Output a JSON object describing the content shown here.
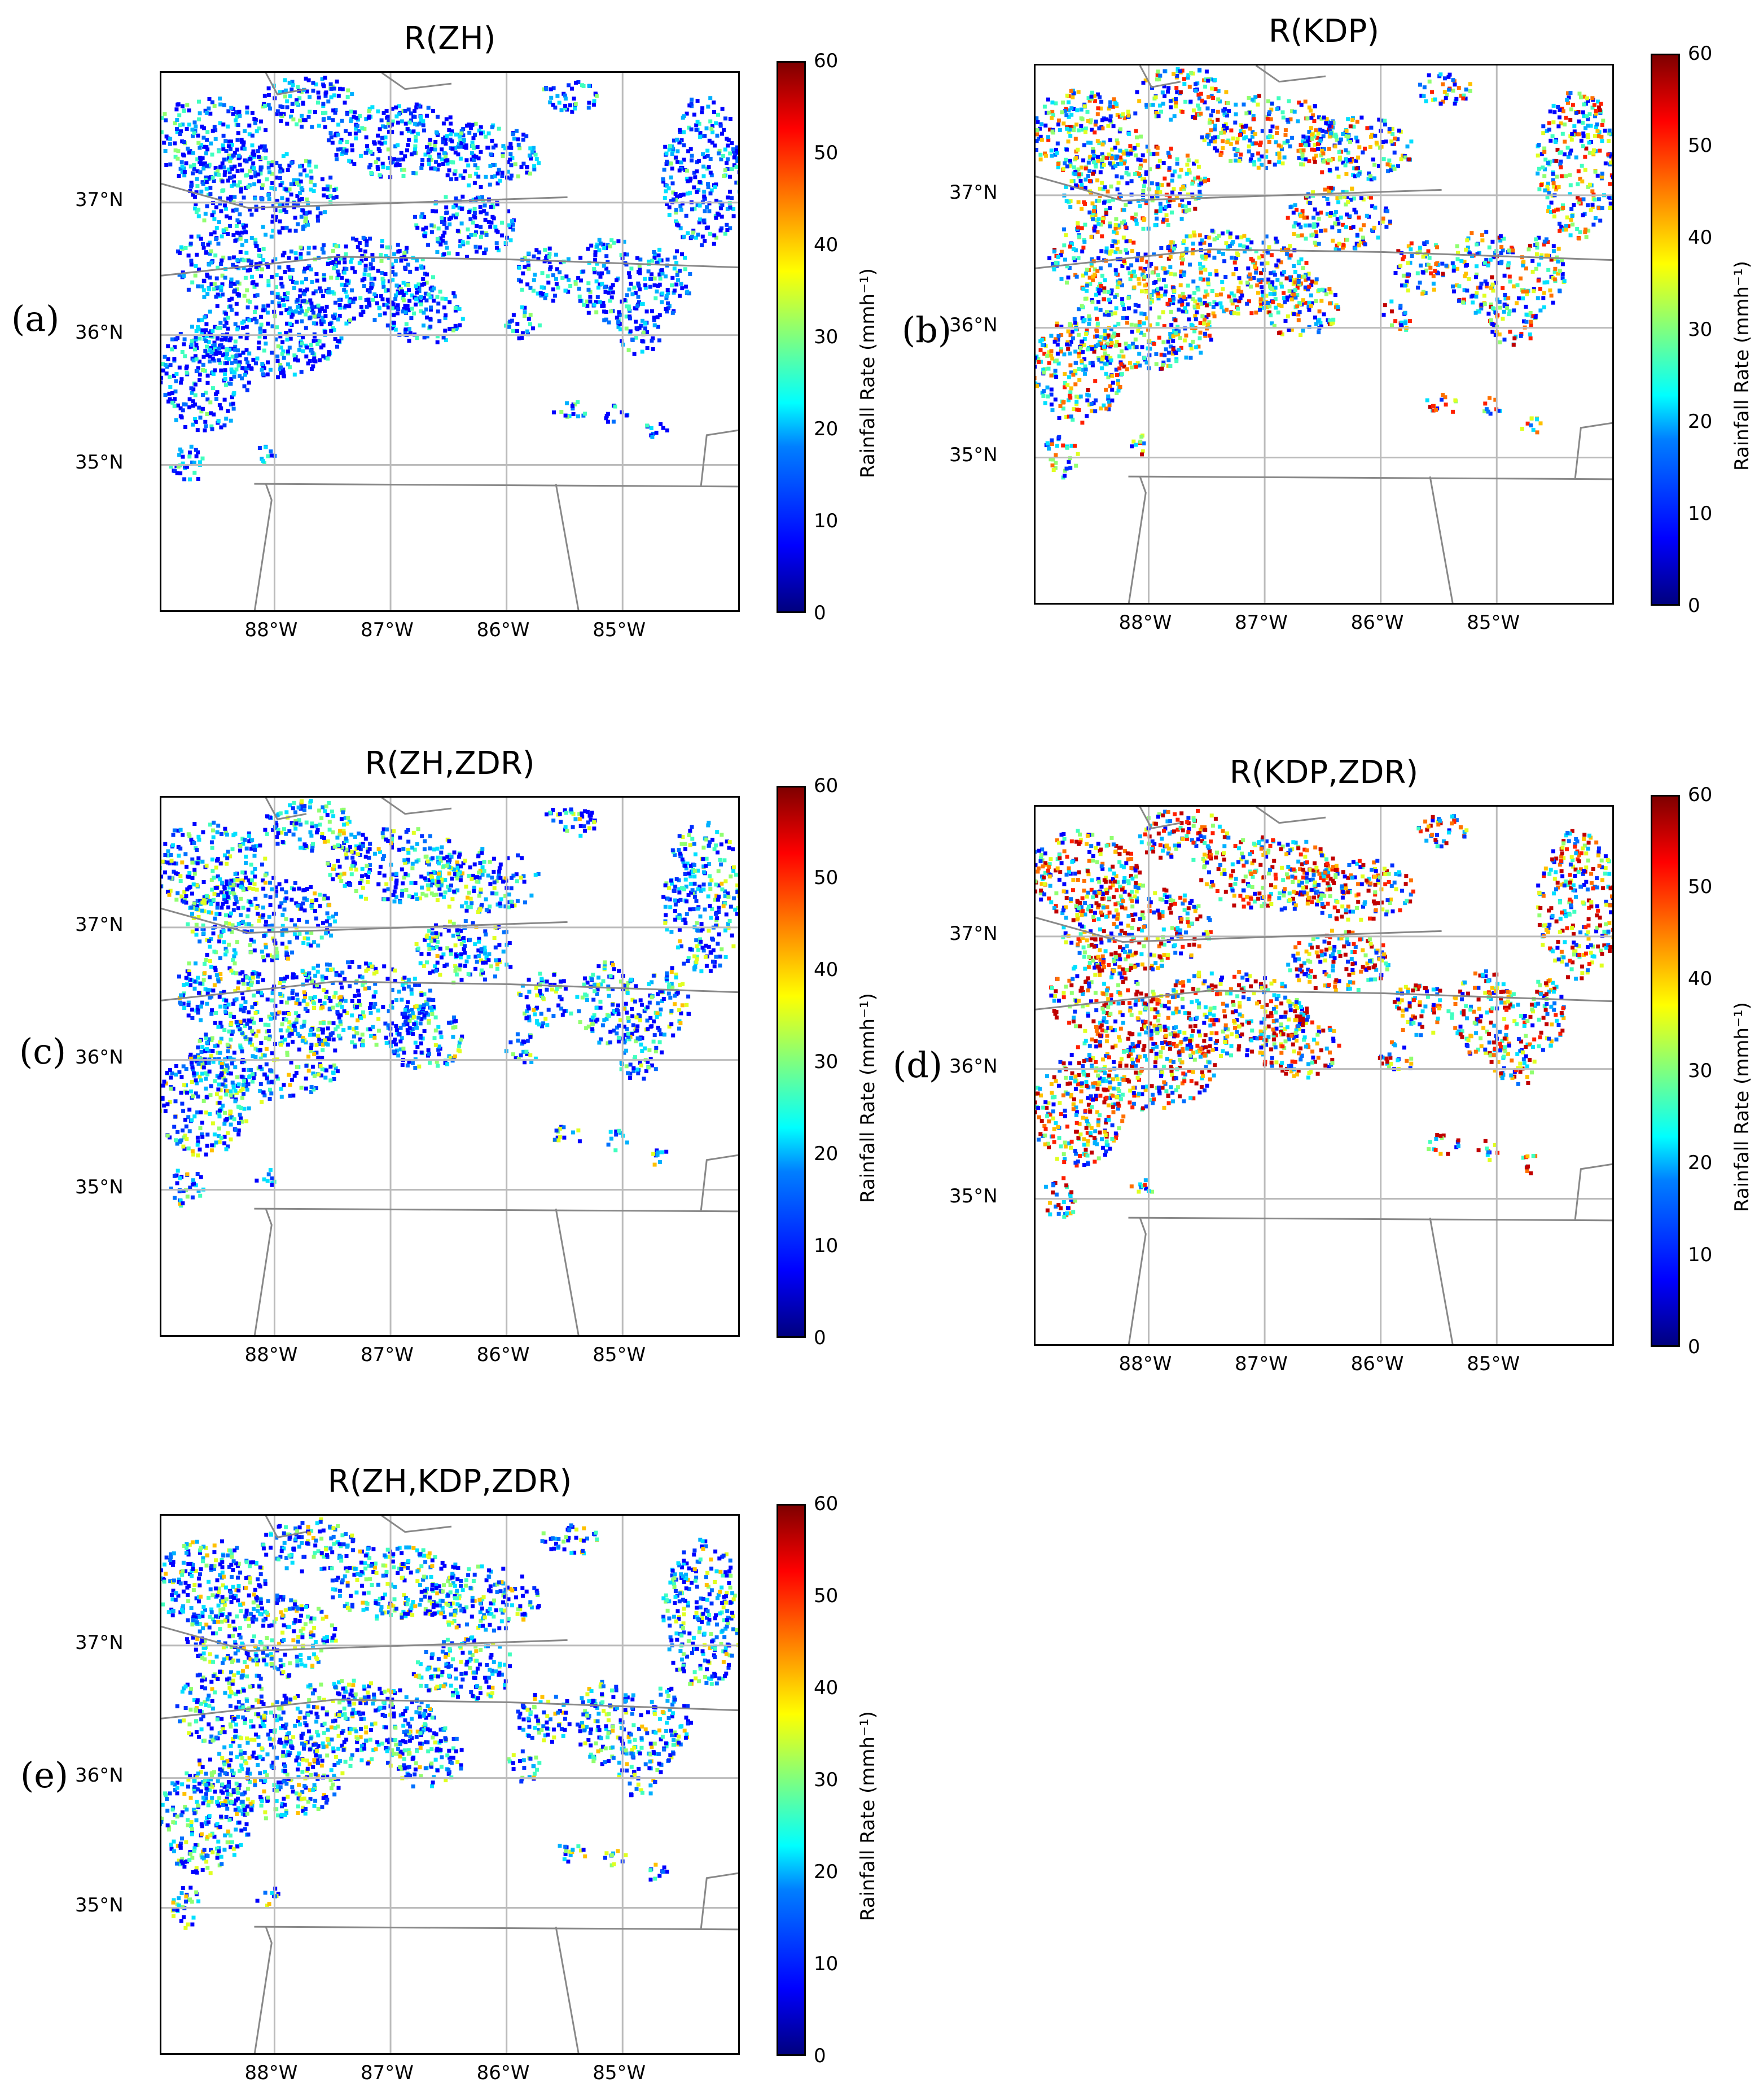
{
  "panels": [
    {
      "letter": "(a)",
      "title": "R(ZH)",
      "intensity": 0.18
    },
    {
      "letter": "(b)",
      "title": "R(KDP)",
      "intensity": 0.55
    },
    {
      "letter": "(c)",
      "title": "R(ZH,ZDR)",
      "intensity": 0.32
    },
    {
      "letter": "(d)",
      "title": "R(KDP,ZDR)",
      "intensity": 0.7
    },
    {
      "letter": "(e)",
      "title": "R(ZH,KDP,ZDR)",
      "intensity": 0.34
    }
  ],
  "lat_ticks": [
    "37°N",
    "36°N",
    "35°N"
  ],
  "lon_ticks": [
    "88°W",
    "87°W",
    "86°W",
    "85°W"
  ],
  "colorbar": {
    "label": "Rainfall Rate (mmh⁻¹)",
    "ticks": [
      "60",
      "50",
      "40",
      "30",
      "20",
      "10",
      "0"
    ],
    "range": [
      0,
      60
    ],
    "colormap": "jet"
  },
  "colors": {
    "grid": "#bbbbbb",
    "border": "#888888"
  }
}
